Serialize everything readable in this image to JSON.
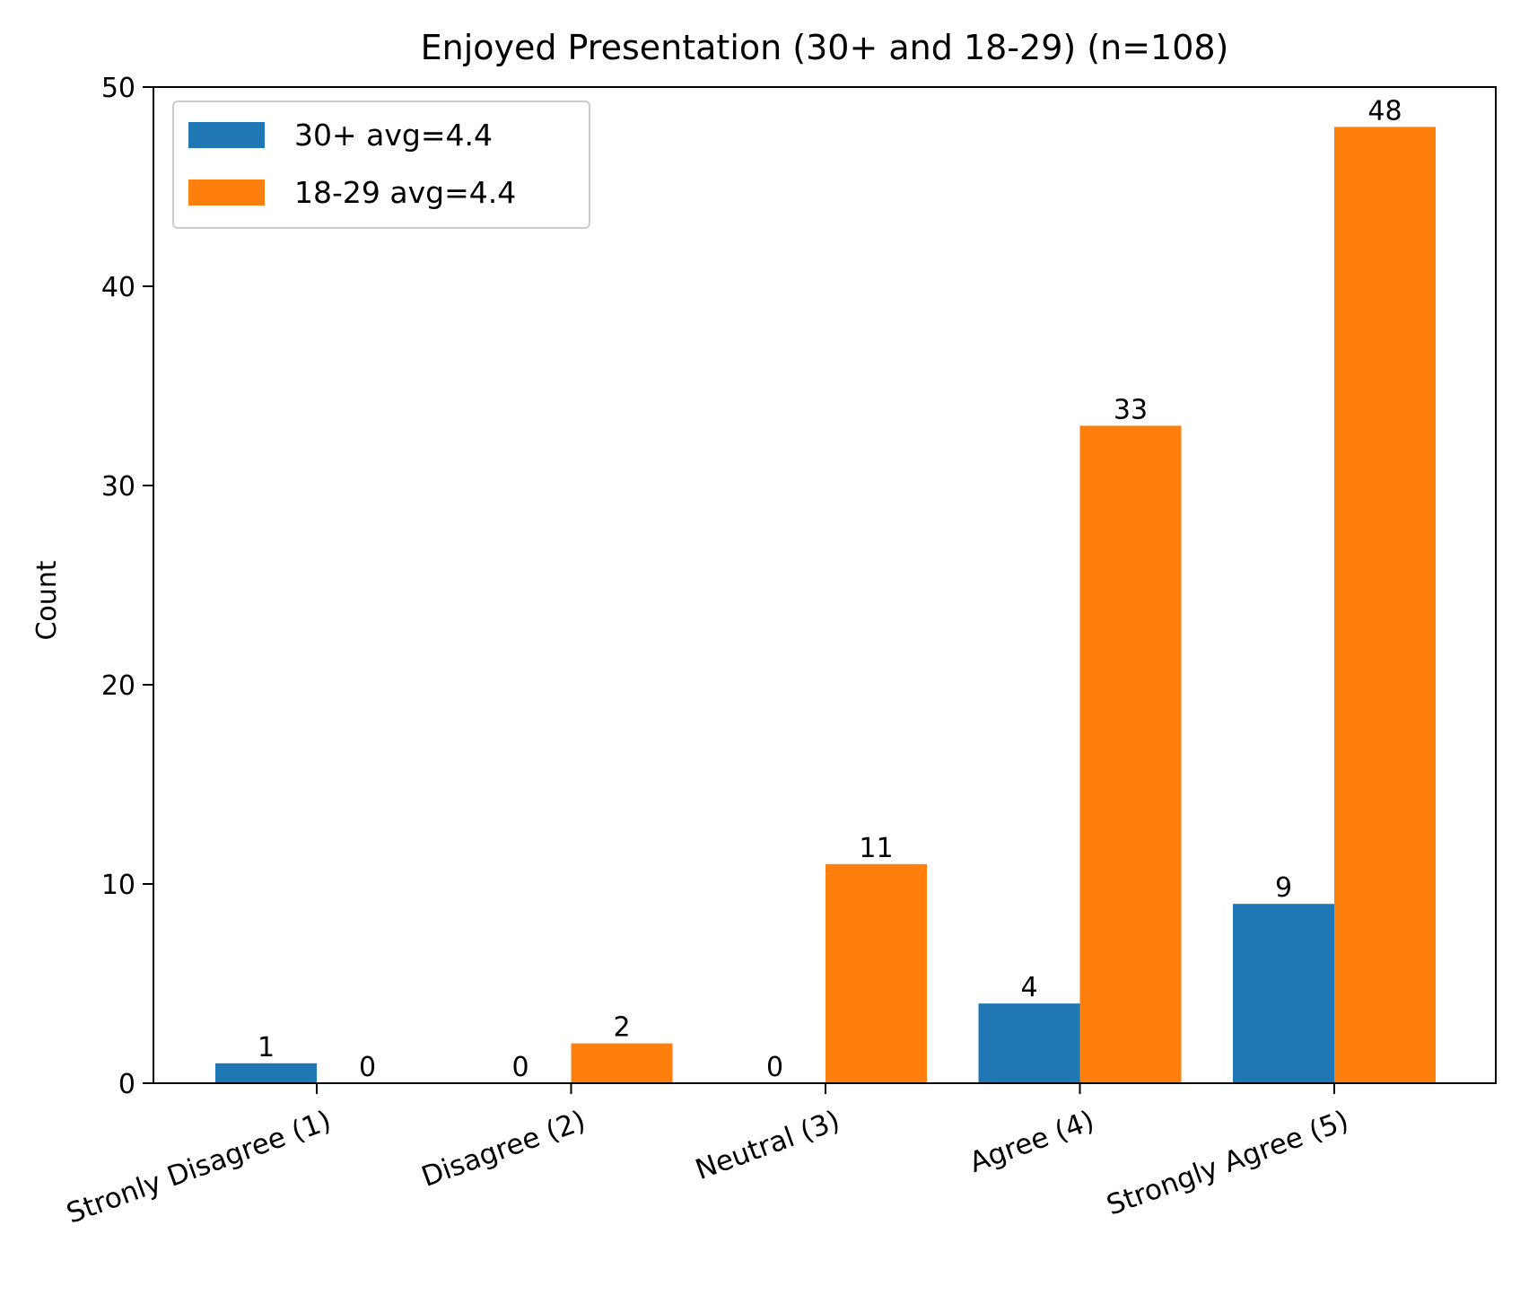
{
  "chart_data": {
    "type": "bar",
    "title": "Enjoyed Presentation (30+ and 18-29) (n=108)",
    "xlabel": "",
    "ylabel": "Count",
    "ylim": [
      0,
      50
    ],
    "yticks": [
      "0",
      "10",
      "20",
      "30",
      "40",
      "50"
    ],
    "categories": [
      "Stronly Disagree (1)",
      "Disagree (2)",
      "Neutral (3)",
      "Agree (4)",
      "Strongly Agree (5)"
    ],
    "series": [
      {
        "name": "30+ avg=4.4",
        "color": "#1f77b4",
        "values": [
          1,
          0,
          0,
          4,
          9
        ]
      },
      {
        "name": "18-29 avg=4.4",
        "color": "#ff7f0e",
        "values": [
          0,
          2,
          11,
          33,
          48
        ]
      }
    ],
    "legend_position": "top-left",
    "grid": false,
    "data_labels": true
  }
}
